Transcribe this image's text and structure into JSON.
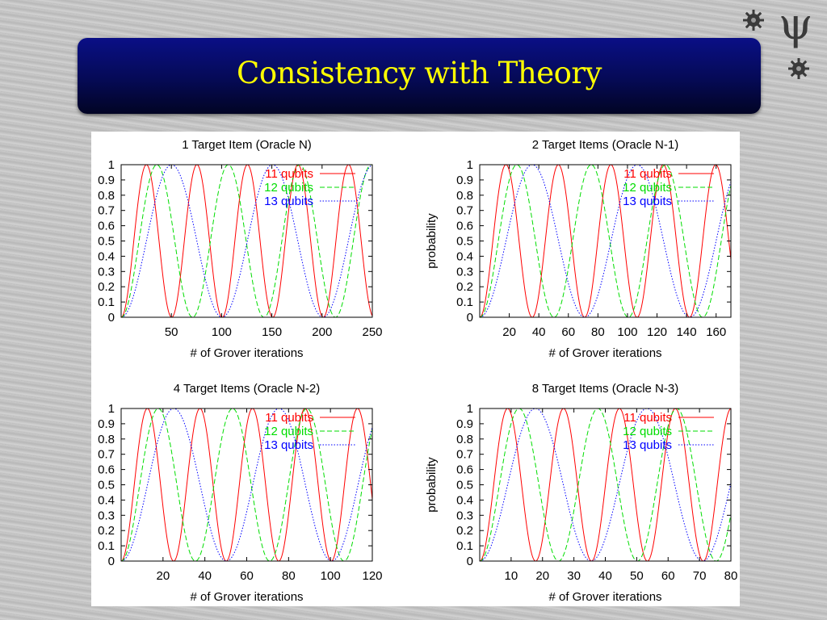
{
  "slide": {
    "title": "Consistency with Theory",
    "icons": [
      "gear-icon",
      "psi-symbol-icon",
      "gear-icon"
    ],
    "psi_symbol": "ψ"
  },
  "colors": {
    "banner": "#050a55",
    "title": "#ffff00",
    "series": [
      "#ff0000",
      "#00dd00",
      "#0000ff"
    ]
  },
  "chart_data": [
    {
      "type": "line",
      "title": "1 Target Item (Oracle N)",
      "xlabel": "# of Grover iterations",
      "ylabel": "",
      "xlim": [
        0,
        250
      ],
      "ylim": [
        0,
        1
      ],
      "xticks": [
        50,
        100,
        150,
        200,
        250
      ],
      "yticks": [
        0,
        0.1,
        0.2,
        0.3,
        0.4,
        0.5,
        0.6,
        0.7,
        0.8,
        0.9,
        1
      ],
      "grid": false,
      "legend": "top-right",
      "series": [
        {
          "name": "11 qubits",
          "color": "#ff0000",
          "style": "solid",
          "period": 50.3
        },
        {
          "name": "12 qubits",
          "color": "#00dd00",
          "style": "dashed",
          "period": 71.1
        },
        {
          "name": "13 qubits",
          "color": "#0000ff",
          "style": "dotted",
          "period": 100.5
        }
      ]
    },
    {
      "type": "line",
      "title": "2 Target Items (Oracle N-1)",
      "xlabel": "# of Grover iterations",
      "ylabel": "probability",
      "xlim": [
        0,
        170
      ],
      "ylim": [
        0,
        1
      ],
      "xticks": [
        20,
        40,
        60,
        80,
        100,
        120,
        140,
        160
      ],
      "yticks": [
        0,
        0.1,
        0.2,
        0.3,
        0.4,
        0.5,
        0.6,
        0.7,
        0.8,
        0.9,
        1
      ],
      "grid": false,
      "legend": "top-right",
      "series": [
        {
          "name": "11 qubits",
          "color": "#ff0000",
          "style": "solid",
          "period": 35.5
        },
        {
          "name": "12 qubits",
          "color": "#00dd00",
          "style": "dashed",
          "period": 50.3
        },
        {
          "name": "13 qubits",
          "color": "#0000ff",
          "style": "dotted",
          "period": 71.1
        }
      ]
    },
    {
      "type": "line",
      "title": "4 Target Items (Oracle N-2)",
      "xlabel": "# of Grover iterations",
      "ylabel": "",
      "xlim": [
        0,
        120
      ],
      "ylim": [
        0,
        1
      ],
      "xticks": [
        20,
        40,
        60,
        80,
        100,
        120
      ],
      "yticks": [
        0,
        0.1,
        0.2,
        0.3,
        0.4,
        0.5,
        0.6,
        0.7,
        0.8,
        0.9,
        1
      ],
      "grid": false,
      "legend": "top-right",
      "series": [
        {
          "name": "11 qubits",
          "color": "#ff0000",
          "style": "solid",
          "period": 25.1
        },
        {
          "name": "12 qubits",
          "color": "#00dd00",
          "style": "dashed",
          "period": 35.5
        },
        {
          "name": "13 qubits",
          "color": "#0000ff",
          "style": "dotted",
          "period": 50.3
        }
      ]
    },
    {
      "type": "line",
      "title": "8 Target Items (Oracle N-3)",
      "xlabel": "# of Grover iterations",
      "ylabel": "probability",
      "xlim": [
        0,
        80
      ],
      "ylim": [
        0,
        1
      ],
      "xticks": [
        10,
        20,
        30,
        40,
        50,
        60,
        70,
        80
      ],
      "yticks": [
        0,
        0.1,
        0.2,
        0.3,
        0.4,
        0.5,
        0.6,
        0.7,
        0.8,
        0.9,
        1
      ],
      "grid": false,
      "legend": "top-right",
      "series": [
        {
          "name": "11 qubits",
          "color": "#ff0000",
          "style": "solid",
          "period": 17.8
        },
        {
          "name": "12 qubits",
          "color": "#00dd00",
          "style": "dashed",
          "period": 25.1
        },
        {
          "name": "13 qubits",
          "color": "#0000ff",
          "style": "dotted",
          "period": 35.5
        }
      ]
    }
  ]
}
